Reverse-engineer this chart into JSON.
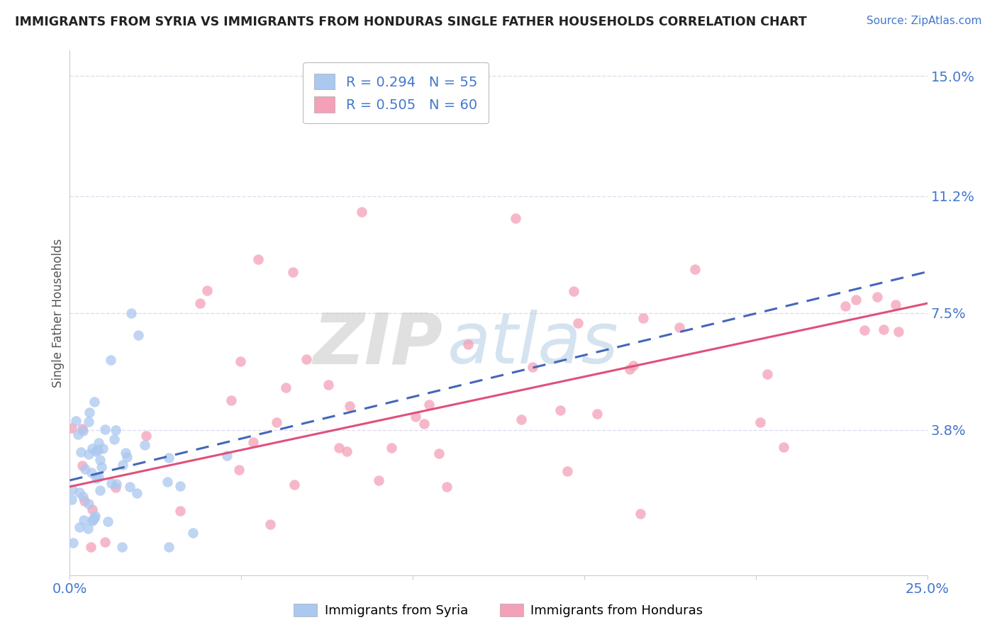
{
  "title": "IMMIGRANTS FROM SYRIA VS IMMIGRANTS FROM HONDURAS SINGLE FATHER HOUSEHOLDS CORRELATION CHART",
  "source_text": "Source: ZipAtlas.com",
  "ylabel": "Single Father Households",
  "ytick_vals": [
    0.038,
    0.075,
    0.112,
    0.15
  ],
  "ytick_labels": [
    "3.8%",
    "7.5%",
    "11.2%",
    "15.0%"
  ],
  "xtick_vals": [
    0.0,
    0.05,
    0.1,
    0.15,
    0.2,
    0.25
  ],
  "xtick_labels": [
    "0.0%",
    "",
    "",
    "",
    "",
    "25.0%"
  ],
  "xmin": 0.0,
  "xmax": 0.25,
  "ymin": -0.008,
  "ymax": 0.158,
  "legend_syria_label": "R = 0.294   N = 55",
  "legend_honduras_label": "R = 0.505   N = 60",
  "legend_label_syria": "Immigrants from Syria",
  "legend_label_honduras": "Immigrants from Honduras",
  "syria_color": "#aac8f0",
  "honduras_color": "#f4a0b8",
  "syria_line_color": "#4466bb",
  "honduras_line_color": "#e0507a",
  "watermark_zip": "ZIP",
  "watermark_atlas": "atlas",
  "syria_line_x0": 0.0,
  "syria_line_y0": 0.022,
  "syria_line_x1": 0.25,
  "syria_line_y1": 0.088,
  "honduras_line_x0": 0.0,
  "honduras_line_y0": 0.02,
  "honduras_line_x1": 0.25,
  "honduras_line_y1": 0.078,
  "syria_seed": 7,
  "honduras_seed": 42
}
